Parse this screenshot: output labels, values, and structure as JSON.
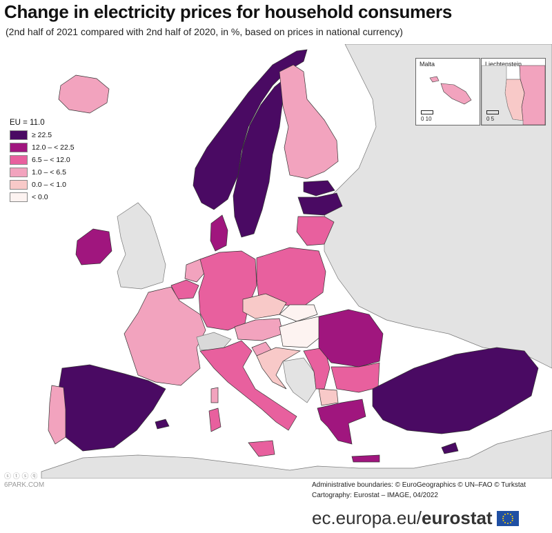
{
  "header": {
    "title": "Change in electricity prices for household consumers",
    "subtitle": "(2nd half of 2021 compared with 2nd half of 2020, in %, based on prices in national currency)"
  },
  "legend": {
    "title": "EU = 11.0",
    "classes": [
      {
        "label": "≥ 22.5",
        "color": "#4a0a63"
      },
      {
        "label": "12.0 – < 22.5",
        "color": "#a0167e"
      },
      {
        "label": "6.5 – < 12.0",
        "color": "#e8609e"
      },
      {
        "label": "1.0 – < 6.5",
        "color": "#f2a3be"
      },
      {
        "label": "0.0 – < 1.0",
        "color": "#f8c9c8"
      },
      {
        "label": "< 0.0",
        "color": "#fdf3f1"
      }
    ],
    "no_data_color": "#d9d9d9",
    "non_eu_color": "#e3e3e3"
  },
  "insets": {
    "malta": {
      "label": "Malta",
      "scale_text": "0   10"
    },
    "liechtenstein": {
      "label": "Liechtenstein",
      "scale_text": "0   5"
    }
  },
  "credits": {
    "line1": "Administrative boundaries: © EuroGeographics © UN–FAO © Turkstat",
    "line2": "Cartography: Eurostat – IMAGE, 04/2022"
  },
  "footer": {
    "url": "ec.europa.eu/",
    "brand": "eurostat"
  },
  "watermark": {
    "line1": "ⓢ ⓣ ⓢ ⓠ",
    "line2": "6PARK.COM"
  }
}
